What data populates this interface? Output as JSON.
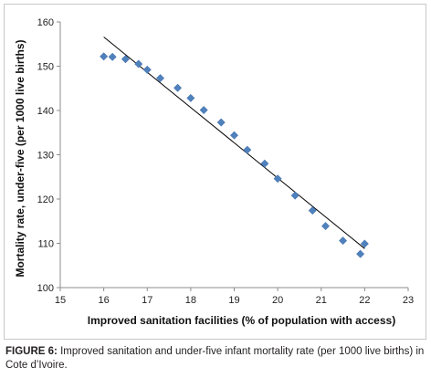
{
  "chart_data": {
    "type": "scatter",
    "xlabel": "Improved sanitation facilities (% of population with access)",
    "ylabel": "Mortality rate, under-five (per 1000 live births)",
    "xlim": [
      15,
      23
    ],
    "ylim": [
      100,
      160
    ],
    "x_ticks": [
      15,
      16,
      17,
      18,
      19,
      20,
      21,
      22,
      23
    ],
    "y_ticks": [
      100,
      110,
      120,
      130,
      140,
      150,
      160
    ],
    "grid": false,
    "legend": "none",
    "marker": "diamond",
    "marker_color": "#4f81bd",
    "series": [
      {
        "x": [
          16.0,
          16.2,
          16.5,
          16.8,
          17.0,
          17.3,
          17.7,
          18.0,
          18.3,
          18.7,
          19.0,
          19.3,
          19.7,
          20.0,
          20.4,
          20.8,
          21.1,
          21.5,
          21.9,
          22.0
        ],
        "y": [
          152.2,
          152.1,
          151.6,
          150.5,
          149.2,
          147.3,
          145.1,
          142.8,
          140.1,
          137.3,
          134.4,
          131.1,
          128.0,
          124.6,
          120.8,
          117.4,
          113.9,
          110.6,
          107.6,
          109.9
        ]
      }
    ],
    "trendline": {
      "x": [
        16.0,
        22.0
      ],
      "y": [
        156.6,
        108.8
      ],
      "color": "#000000"
    }
  },
  "caption": {
    "label": "FIGURE 6:",
    "text": " Improved sanitation and under-five infant mortality rate (per 1000 live births) in Cote d’Ivoire."
  }
}
